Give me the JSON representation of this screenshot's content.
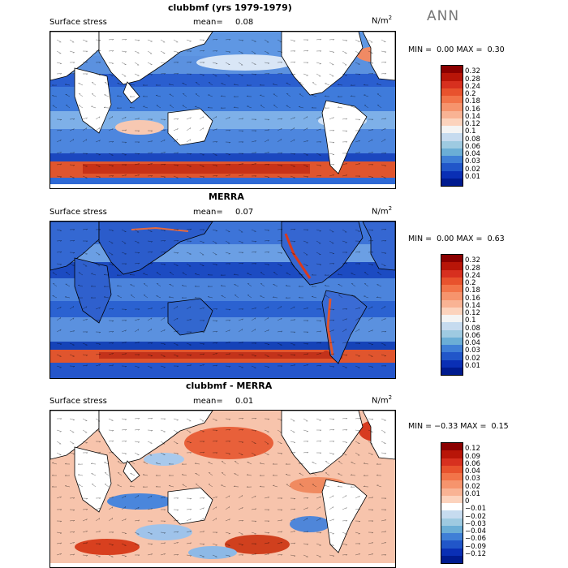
{
  "season": "ANN",
  "panels": [
    {
      "title": "clubbmf (yrs 1979-1979)",
      "variable": "Surface stress",
      "mean_label": "mean=",
      "mean_value": "0.08",
      "units": "N/m",
      "units_exp": "2",
      "min_label": "MIN =",
      "min_value": "0.00",
      "max_label": "MAX =",
      "max_value": "0.30",
      "colorbar": {
        "labels": [
          "0.32",
          "0.28",
          "0.24",
          "0.2",
          "0.18",
          "0.16",
          "0.14",
          "0.12",
          "0.1",
          "0.08",
          "0.06",
          "0.04",
          "0.03",
          "0.02",
          "0.01"
        ],
        "colors": [
          "#8b0000",
          "#b81508",
          "#d7301f",
          "#e8522d",
          "#f27449",
          "#f6946d",
          "#f9b394",
          "#fcd3bd",
          "#f4f4f4",
          "#c6dbef",
          "#9ecae1",
          "#6baed6",
          "#3f7fd6",
          "#2156c9",
          "#0a2fb5",
          "#001b8f"
        ]
      }
    },
    {
      "title": "MERRA",
      "variable": "Surface stress",
      "mean_label": "mean=",
      "mean_value": "0.07",
      "units": "N/m",
      "units_exp": "2",
      "min_label": "MIN =",
      "min_value": "0.00",
      "max_label": "MAX =",
      "max_value": "0.63",
      "colorbar": {
        "labels": [
          "0.32",
          "0.28",
          "0.24",
          "0.2",
          "0.18",
          "0.16",
          "0.14",
          "0.12",
          "0.1",
          "0.08",
          "0.06",
          "0.04",
          "0.03",
          "0.02",
          "0.01"
        ],
        "colors": [
          "#8b0000",
          "#b81508",
          "#d7301f",
          "#e8522d",
          "#f27449",
          "#f6946d",
          "#f9b394",
          "#fcd3bd",
          "#f4f4f4",
          "#c6dbef",
          "#9ecae1",
          "#6baed6",
          "#3f7fd6",
          "#2156c9",
          "#0a2fb5",
          "#001b8f"
        ]
      }
    },
    {
      "title": "clubbmf - MERRA",
      "variable": "Surface stress",
      "mean_label": "mean=",
      "mean_value": "0.01",
      "units": "N/m",
      "units_exp": "2",
      "min_label": "MIN =",
      "min_value": "−0.33",
      "max_label": "MAX =",
      "max_value": "0.15",
      "colorbar": {
        "labels": [
          "0.12",
          "0.09",
          "0.06",
          "0.04",
          "0.03",
          "0.02",
          "0.01",
          "0",
          "−0.01",
          "−0.02",
          "−0.03",
          "−0.04",
          "−0.06",
          "−0.09",
          "−0.12"
        ],
        "colors": [
          "#8b0000",
          "#b81508",
          "#d7301f",
          "#e8522d",
          "#f27449",
          "#f6946d",
          "#f9b394",
          "#fcd3bd",
          "#ffffff",
          "#c6dbef",
          "#9ecae1",
          "#6baed6",
          "#3f7fd6",
          "#2156c9",
          "#0a2fb5",
          "#001b8f"
        ]
      }
    }
  ]
}
